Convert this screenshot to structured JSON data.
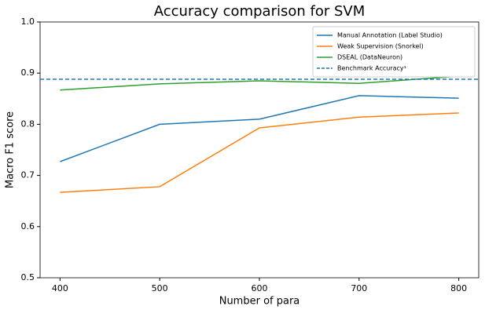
{
  "chart_data": {
    "type": "line",
    "title": "Accuracy comparison for SVM",
    "x_label": "Number of para",
    "y_label": "Macro F1 score",
    "x": [
      400,
      500,
      600,
      700,
      800
    ],
    "series": [
      {
        "name": "Manual Annotation (Label Studio)",
        "color": "#1f77b4",
        "values": [
          0.727,
          0.8,
          0.81,
          0.856,
          0.851
        ]
      },
      {
        "name": "Weak Supervision (Snorkel)",
        "color": "#ff7f0e",
        "values": [
          0.667,
          0.678,
          0.793,
          0.814,
          0.822
        ]
      },
      {
        "name": "DSEAL (DataNeuron)",
        "color": "#2ca02c",
        "values": [
          0.867,
          0.879,
          0.885,
          0.88,
          0.894
        ]
      }
    ],
    "reference_lines": [
      {
        "name": "Benchmark Accuracy¹",
        "color": "#1f77b4",
        "value": 0.888,
        "dashed": true
      }
    ],
    "xlim": [
      380,
      820
    ],
    "xticks": [
      400,
      500,
      600,
      700,
      800
    ],
    "ylim": [
      0.5,
      1
    ],
    "yticks": [
      0.5,
      0.6,
      0.7,
      0.8,
      0.9,
      {
        "value": 1,
        "label": "1.0"
      }
    ],
    "grid": false,
    "legend": "upper-right"
  }
}
